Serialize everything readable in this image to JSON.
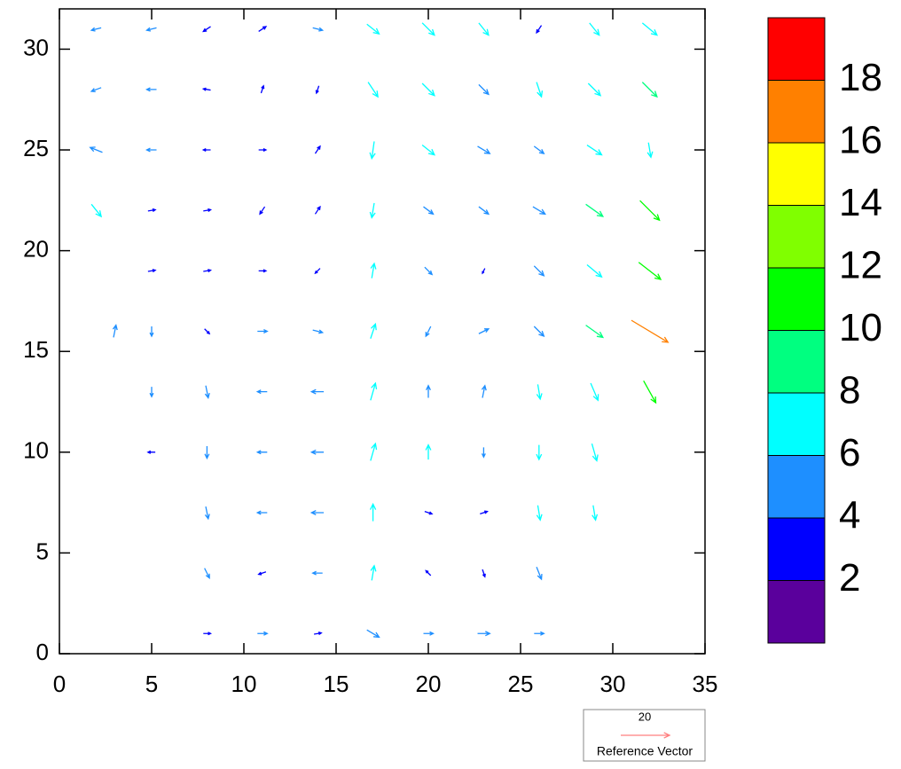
{
  "chart_data": {
    "type": "quiver",
    "xlim": [
      0,
      35
    ],
    "ylim": [
      0,
      32
    ],
    "xticks": [
      0,
      5,
      10,
      15,
      20,
      25,
      30,
      35
    ],
    "yticks": [
      0,
      5,
      10,
      15,
      20,
      25,
      30
    ],
    "x": [
      2,
      5,
      8,
      11,
      14,
      17,
      20,
      23,
      26,
      29,
      32,
      2,
      5,
      8,
      11,
      14,
      17,
      20,
      23,
      26,
      29,
      32,
      2,
      5,
      8,
      11,
      14,
      17,
      20,
      23,
      26,
      29,
      32,
      2,
      5,
      8,
      11,
      14,
      17,
      20,
      23,
      26,
      29,
      32,
      5,
      8,
      11,
      14,
      17,
      20,
      23,
      26,
      29,
      32,
      3,
      5,
      8,
      11,
      14,
      17,
      20,
      23,
      26,
      29,
      32,
      5,
      8,
      11,
      14,
      17,
      20,
      23,
      26,
      29,
      32,
      5,
      8,
      11,
      14,
      17,
      20,
      23,
      26,
      29,
      8,
      11,
      14,
      17,
      20,
      23,
      26,
      29,
      8,
      11,
      14,
      17,
      20,
      23,
      26,
      8,
      11,
      14,
      17,
      20,
      23,
      26
    ],
    "y": [
      31,
      31,
      31,
      31,
      31,
      31,
      31,
      31,
      31,
      31,
      31,
      28,
      28,
      28,
      28,
      28,
      28,
      28,
      28,
      28,
      28,
      28,
      25,
      25,
      25,
      25,
      25,
      25,
      25,
      25,
      25,
      25,
      25,
      22,
      22,
      22,
      22,
      22,
      22,
      22,
      22,
      22,
      22,
      22,
      19,
      19,
      19,
      19,
      19,
      19,
      19,
      19,
      19,
      19,
      16,
      16,
      16,
      16,
      16,
      16,
      16,
      16,
      16,
      16,
      16,
      13,
      13,
      13,
      13,
      13,
      13,
      13,
      13,
      13,
      13,
      10,
      10,
      10,
      10,
      10,
      10,
      10,
      10,
      10,
      7,
      7,
      7,
      7,
      7,
      7,
      7,
      7,
      4,
      4,
      4,
      4,
      4,
      4,
      4,
      1,
      1,
      1,
      1,
      1,
      1,
      1
    ],
    "u": [
      -4,
      -4,
      -3,
      3,
      4,
      5,
      5,
      4,
      -2,
      4,
      6,
      -4,
      -4,
      -3,
      1,
      -1,
      4,
      5,
      4,
      2,
      5,
      6,
      -5,
      -4,
      -3,
      3,
      2,
      -1,
      5,
      5,
      4,
      6,
      1,
      4,
      3,
      3,
      -2,
      2,
      -1,
      4,
      4,
      5,
      7,
      8,
      3,
      3,
      3,
      -2,
      1,
      3,
      -1,
      4,
      6,
      9,
      1,
      0,
      2,
      4,
      4,
      2,
      -2,
      4,
      4,
      7,
      15,
      0,
      1,
      -4,
      -5,
      2,
      0,
      1,
      1,
      3,
      5,
      -3,
      0,
      -4,
      -5,
      2,
      0,
      0,
      0,
      2,
      1,
      -4,
      -5,
      0,
      3,
      3,
      1,
      1,
      2,
      -3,
      -4,
      1,
      -2,
      1,
      2,
      3,
      4,
      3,
      5,
      4,
      5,
      4
    ],
    "v": [
      -1,
      -1,
      -2,
      2,
      -1,
      -4,
      -5,
      -5,
      -3,
      -5,
      -5,
      -1.5,
      0,
      0.5,
      3,
      -3,
      -6,
      -5,
      -4,
      -6,
      -5,
      -6,
      2,
      0,
      0,
      0,
      3,
      -7,
      -4,
      -3,
      -3,
      -4,
      -6,
      -5,
      0.5,
      0.5,
      -3,
      3,
      -6,
      -3,
      -3,
      -3,
      -5,
      -8,
      0.5,
      0.5,
      0,
      -2,
      6,
      -3,
      -2,
      -4,
      -5,
      -7,
      5,
      -4,
      -2,
      0,
      -1,
      6,
      -4,
      2,
      -4,
      -5,
      -9,
      -4,
      -5,
      0,
      0,
      7,
      5,
      5,
      -6,
      -7,
      -9,
      0,
      -5,
      0,
      0,
      7,
      6,
      -4,
      -6,
      -7,
      -5,
      0,
      0,
      7,
      -1,
      1,
      -6,
      -6,
      -4,
      -1,
      0,
      6,
      2,
      -3,
      -5,
      0,
      0,
      0.5,
      -3,
      0,
      0,
      0
    ],
    "colorbar": {
      "ticks": [
        2,
        4,
        6,
        8,
        10,
        12,
        14,
        16,
        18
      ],
      "colors": [
        "#5a009c",
        "#0000ff",
        "#1e8fff",
        "#00ffff",
        "#00ff80",
        "#00ff00",
        "#80ff00",
        "#ffff00",
        "#ff8000",
        "#ff0000"
      ]
    },
    "ref_magnitude": 20,
    "ref_label": "Reference Vector",
    "ref_color": "#ff7f7f"
  }
}
